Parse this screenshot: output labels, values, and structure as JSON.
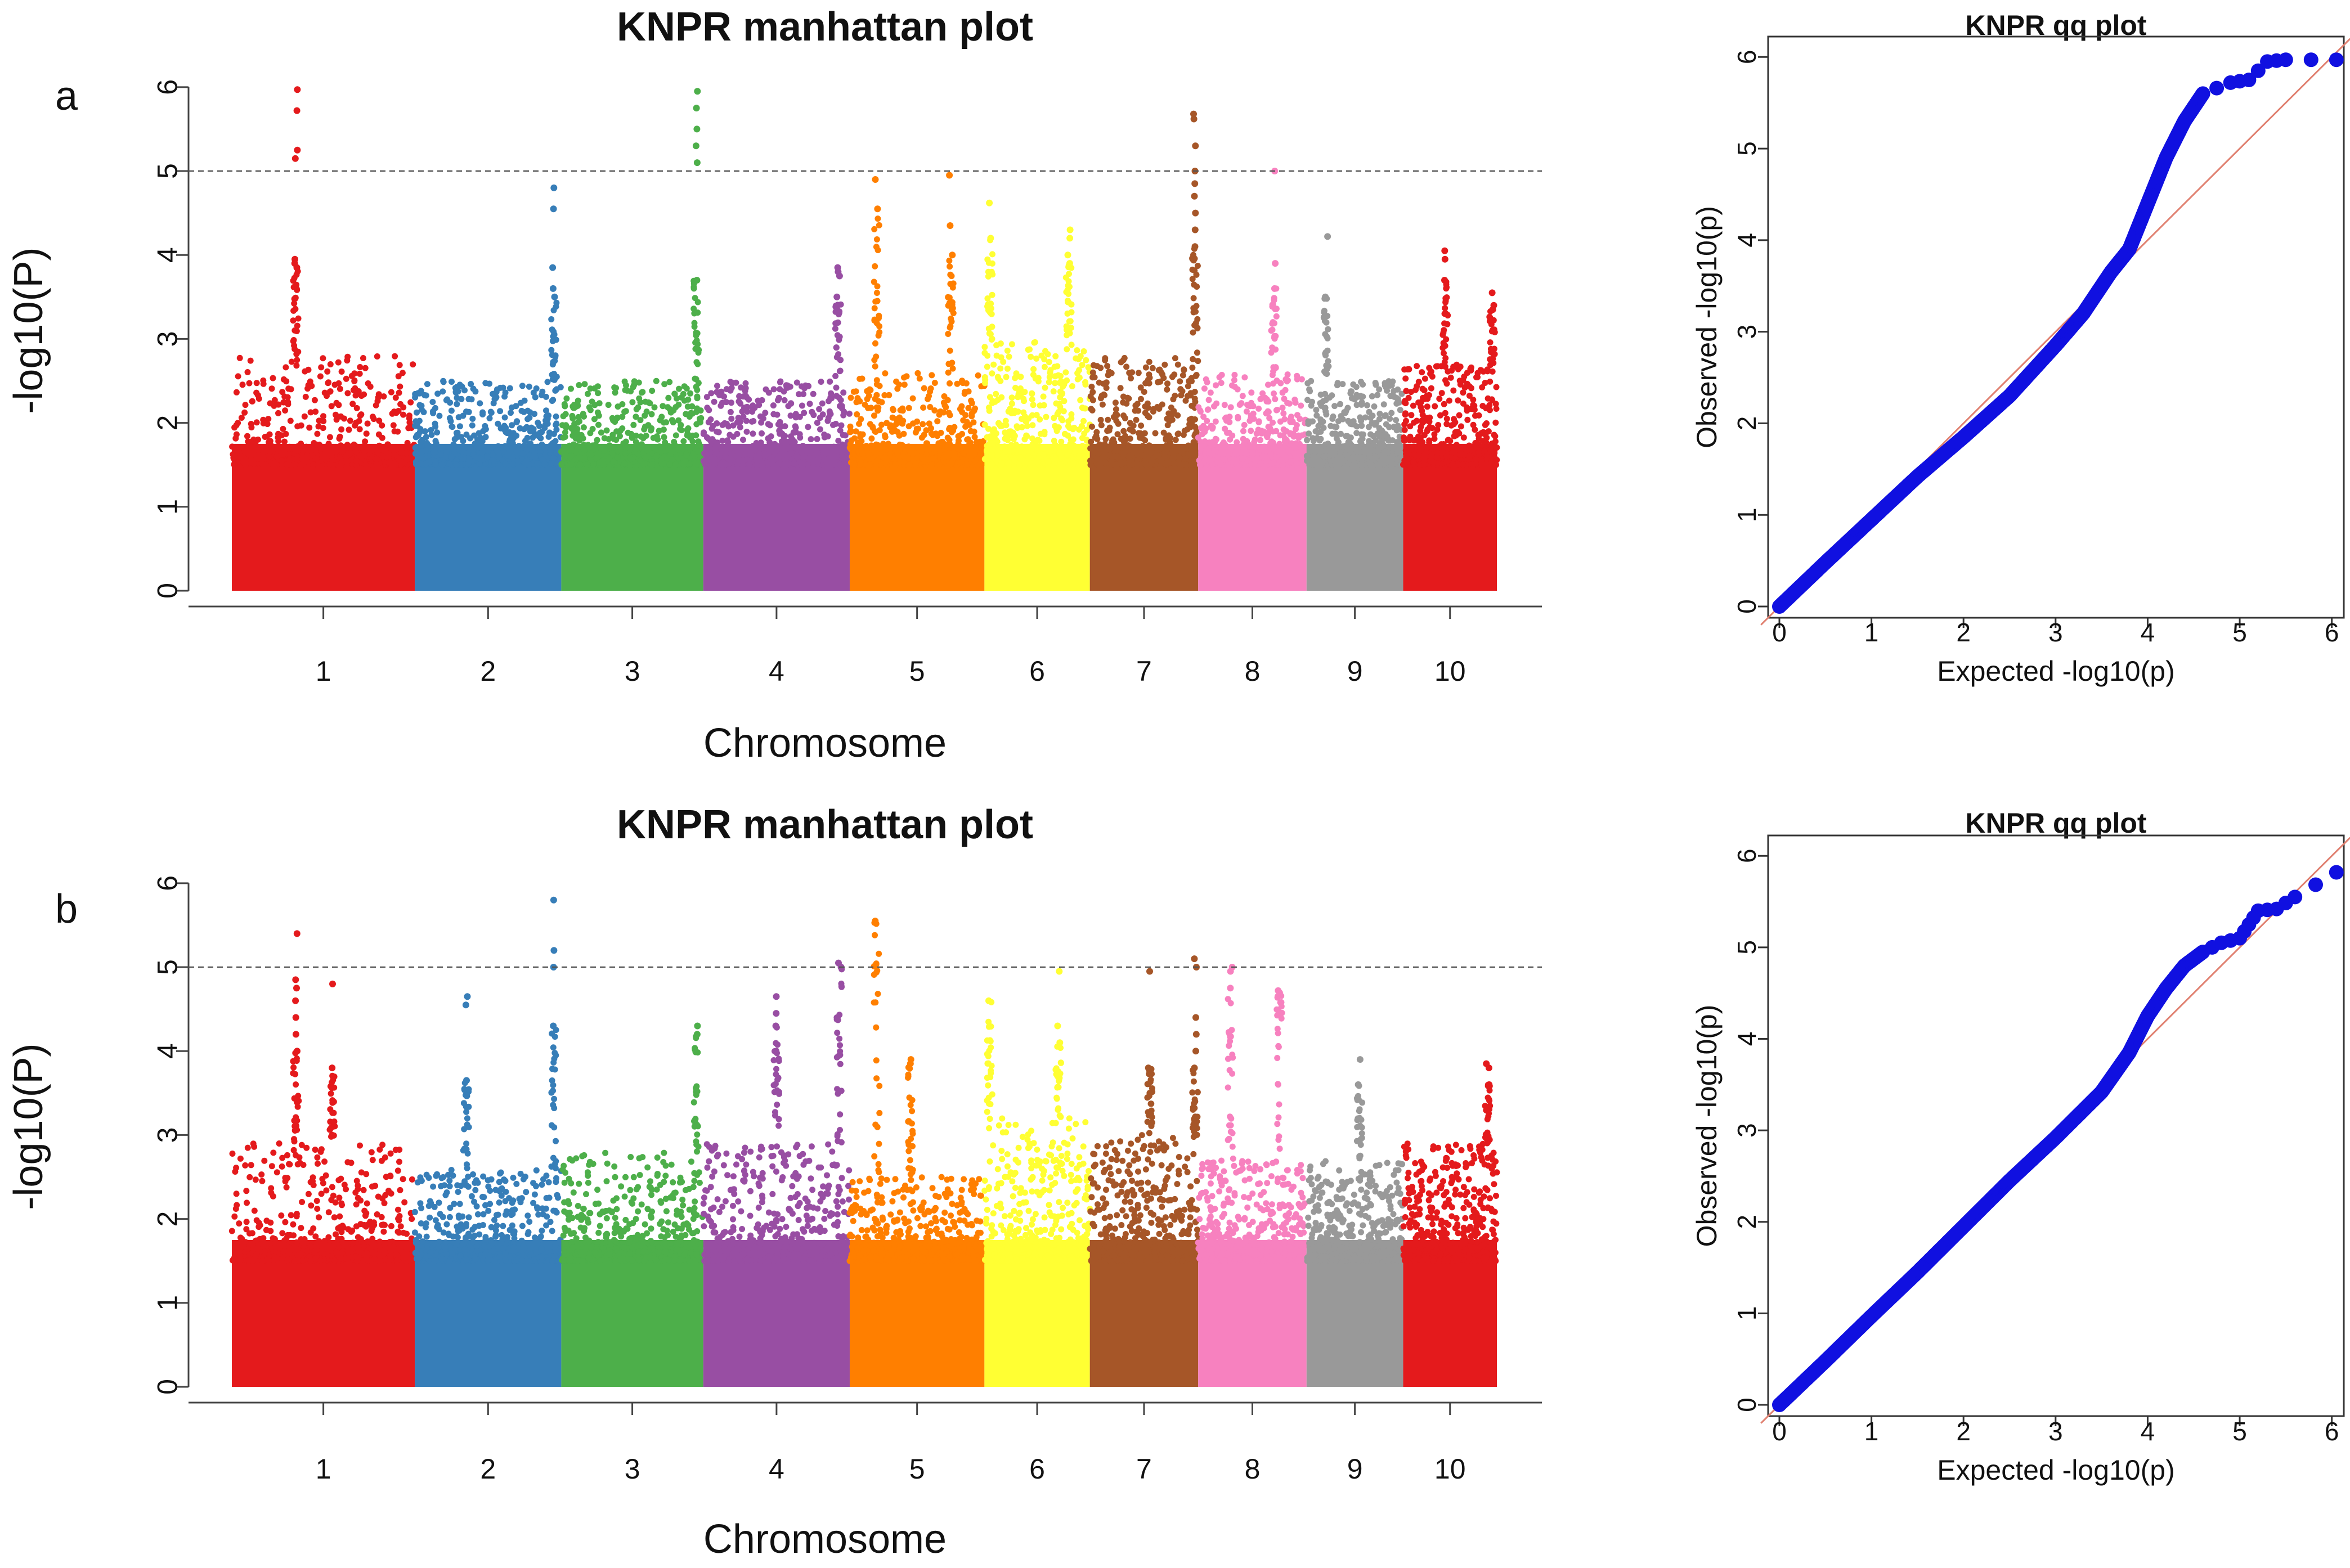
{
  "chart_data": [
    {
      "panel_label": "a",
      "type": "scatter",
      "title": "KNPR manhattan plot",
      "xlabel": "Chromosome",
      "ylabel": "-log10(P)",
      "categories": [
        "1",
        "2",
        "3",
        "4",
        "5",
        "6",
        "7",
        "8",
        "9",
        "10"
      ],
      "colors": [
        "#e41a1c",
        "#377eb8",
        "#4daf4a",
        "#984ea3",
        "#ff7f00",
        "#ffff33",
        "#a65628",
        "#f781bf",
        "#999999",
        "#e41a1c"
      ],
      "ylim": [
        0,
        6.2
      ],
      "yticks": [
        "0",
        "1",
        "2",
        "3",
        "4",
        "5",
        "6"
      ],
      "threshold": 5,
      "bulk_height": [
        2.8,
        2.5,
        2.5,
        2.5,
        2.6,
        3.0,
        2.8,
        2.6,
        2.5,
        2.7
      ],
      "peaks": [
        {
          "chrom": "1",
          "pos": 0.35,
          "values": [
            5.97,
            5.72,
            5.25,
            5.15,
            3.95,
            3.9,
            3.85
          ]
        },
        {
          "chrom": "2",
          "pos": 0.95,
          "values": [
            4.8,
            4.55,
            3.85,
            3.6,
            3.5
          ]
        },
        {
          "chrom": "3",
          "pos": 0.95,
          "values": [
            5.95,
            5.75,
            5.5,
            5.3,
            5.1,
            3.7
          ]
        },
        {
          "chrom": "4",
          "pos": 0.92,
          "values": [
            3.85,
            3.8,
            3.75,
            3.5
          ]
        },
        {
          "chrom": "5",
          "pos": 0.2,
          "values": [
            4.9,
            4.55
          ]
        },
        {
          "chrom": "5",
          "pos": 0.75,
          "values": [
            4.95,
            4.35,
            4.0
          ]
        },
        {
          "chrom": "6",
          "pos": 0.05,
          "values": [
            4.62,
            4.2
          ]
        },
        {
          "chrom": "6",
          "pos": 0.8,
          "values": [
            4.3,
            4.2,
            4.0,
            3.9
          ]
        },
        {
          "chrom": "7",
          "pos": 0.97,
          "values": [
            5.68,
            5.62,
            5.3,
            5.0,
            4.85,
            4.7,
            4.5,
            4.3,
            4.1
          ]
        },
        {
          "chrom": "8",
          "pos": 0.7,
          "values": [
            5.0,
            3.9,
            3.6
          ]
        },
        {
          "chrom": "9",
          "pos": 0.2,
          "values": [
            4.22,
            3.5
          ]
        },
        {
          "chrom": "10",
          "pos": 0.45,
          "values": [
            4.05,
            3.95,
            3.7
          ]
        },
        {
          "chrom": "10",
          "pos": 0.95,
          "values": [
            3.55,
            3.4,
            3.35
          ]
        }
      ]
    },
    {
      "panel_label": "",
      "type": "scatter",
      "title": "KNPR qq plot",
      "xlabel": "Expected -log10(p)",
      "ylabel": "Observed -log10(p)",
      "xlim": [
        0,
        6.1
      ],
      "ylim": [
        0,
        6.1
      ],
      "xticks": [
        "0",
        "1",
        "2",
        "3",
        "4",
        "5",
        "6"
      ],
      "yticks": [
        "0",
        "1",
        "2",
        "3",
        "4",
        "5",
        "6"
      ],
      "points": [
        [
          0,
          0
        ],
        [
          0.5,
          0.48
        ],
        [
          1,
          0.95
        ],
        [
          1.5,
          1.42
        ],
        [
          2,
          1.85
        ],
        [
          2.5,
          2.3
        ],
        [
          3,
          2.85
        ],
        [
          3.3,
          3.2
        ],
        [
          3.6,
          3.65
        ],
        [
          3.8,
          3.9
        ],
        [
          4.0,
          4.4
        ],
        [
          4.2,
          4.9
        ],
        [
          4.4,
          5.3
        ],
        [
          4.6,
          5.6
        ],
        [
          4.9,
          5.72
        ],
        [
          5.1,
          5.75
        ],
        [
          5.3,
          5.95
        ],
        [
          5.5,
          5.97
        ],
        [
          6.05,
          5.97
        ]
      ]
    },
    {
      "panel_label": "b",
      "type": "scatter",
      "title": "KNPR manhattan plot",
      "xlabel": "Chromosome",
      "ylabel": "-log10(P)",
      "categories": [
        "1",
        "2",
        "3",
        "4",
        "5",
        "6",
        "7",
        "8",
        "9",
        "10"
      ],
      "colors": [
        "#e41a1c",
        "#377eb8",
        "#4daf4a",
        "#984ea3",
        "#ff7f00",
        "#ffff33",
        "#a65628",
        "#f781bf",
        "#999999",
        "#e41a1c"
      ],
      "ylim": [
        0,
        6.2
      ],
      "yticks": [
        "0",
        "1",
        "2",
        "3",
        "4",
        "5",
        "6"
      ],
      "threshold": 5,
      "bulk_height": [
        2.9,
        2.6,
        2.8,
        2.9,
        2.5,
        3.2,
        3.0,
        2.7,
        2.7,
        2.9
      ],
      "peaks": [
        {
          "chrom": "1",
          "pos": 0.35,
          "values": [
            5.4,
            4.85,
            4.75,
            4.6,
            4.4,
            4.2,
            4.0
          ]
        },
        {
          "chrom": "1",
          "pos": 0.55,
          "values": [
            4.8,
            3.8
          ]
        },
        {
          "chrom": "2",
          "pos": 0.35,
          "values": [
            4.65,
            4.55,
            3.65
          ]
        },
        {
          "chrom": "2",
          "pos": 0.95,
          "values": [
            5.8,
            5.2,
            5.0,
            4.3
          ]
        },
        {
          "chrom": "3",
          "pos": 0.95,
          "values": [
            4.3,
            4.2
          ]
        },
        {
          "chrom": "4",
          "pos": 0.5,
          "values": [
            4.65,
            4.45,
            4.3
          ]
        },
        {
          "chrom": "4",
          "pos": 0.93,
          "values": [
            5.05,
            5.0
          ]
        },
        {
          "chrom": "5",
          "pos": 0.2,
          "values": [
            5.55
          ]
        },
        {
          "chrom": "5",
          "pos": 0.45,
          "values": [
            3.9,
            3.85
          ]
        },
        {
          "chrom": "6",
          "pos": 0.05,
          "values": [
            4.6
          ]
        },
        {
          "chrom": "6",
          "pos": 0.7,
          "values": [
            4.95,
            4.3,
            4.1
          ]
        },
        {
          "chrom": "7",
          "pos": 0.55,
          "values": [
            4.95,
            3.8
          ]
        },
        {
          "chrom": "7",
          "pos": 0.97,
          "values": [
            5.1,
            5.0,
            4.4,
            4.2,
            4.0,
            3.8
          ]
        },
        {
          "chrom": "8",
          "pos": 0.3,
          "values": [
            5.0,
            4.95,
            4.75
          ]
        },
        {
          "chrom": "8",
          "pos": 0.75,
          "values": [
            4.72
          ]
        },
        {
          "chrom": "9",
          "pos": 0.55,
          "values": [
            3.9,
            3.6
          ]
        },
        {
          "chrom": "10",
          "pos": 0.9,
          "values": [
            3.85,
            3.8,
            3.6
          ]
        }
      ]
    },
    {
      "panel_label": "",
      "type": "scatter",
      "title": "KNPR qq plot",
      "xlabel": "Expected -log10(p)",
      "ylabel": "Observed -log10(p)",
      "xlim": [
        0,
        6.1
      ],
      "ylim": [
        0,
        6.1
      ],
      "xticks": [
        "0",
        "1",
        "2",
        "3",
        "4",
        "5",
        "6"
      ],
      "yticks": [
        "0",
        "1",
        "2",
        "3",
        "4",
        "5",
        "6"
      ],
      "points": [
        [
          0,
          0
        ],
        [
          0.5,
          0.48
        ],
        [
          1,
          0.97
        ],
        [
          1.5,
          1.45
        ],
        [
          2,
          1.95
        ],
        [
          2.5,
          2.45
        ],
        [
          3,
          2.92
        ],
        [
          3.5,
          3.42
        ],
        [
          3.8,
          3.85
        ],
        [
          4.0,
          4.25
        ],
        [
          4.2,
          4.55
        ],
        [
          4.4,
          4.8
        ],
        [
          4.6,
          4.95
        ],
        [
          4.8,
          5.05
        ],
        [
          5.0,
          5.1
        ],
        [
          5.1,
          5.25
        ],
        [
          5.2,
          5.4
        ],
        [
          5.4,
          5.42
        ],
        [
          5.6,
          5.55
        ],
        [
          6.05,
          5.82
        ]
      ]
    }
  ]
}
